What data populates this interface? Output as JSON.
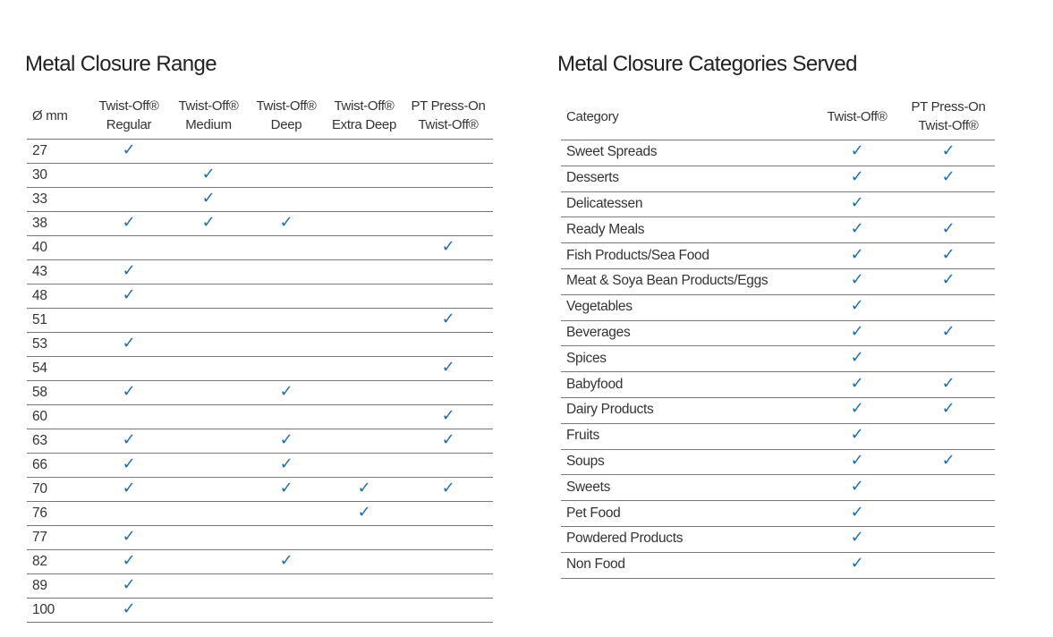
{
  "left": {
    "title": "Metal Closure Range",
    "headers": [
      [
        "Ø mm"
      ],
      [
        "Twist-Off®",
        "Regular"
      ],
      [
        "Twist-Off®",
        "Medium"
      ],
      [
        "Twist-Off®",
        "Deep"
      ],
      [
        "Twist-Off®",
        "Extra Deep"
      ],
      [
        "PT Press-On",
        "Twist-Off®"
      ]
    ],
    "rows": [
      [
        "27",
        "✓",
        null,
        null,
        null,
        null
      ],
      [
        "30",
        null,
        "✓",
        null,
        null,
        null
      ],
      [
        "33",
        null,
        "✓",
        null,
        null,
        null
      ],
      [
        "38",
        "✓",
        "✓",
        "✓",
        null,
        null
      ],
      [
        "40",
        null,
        null,
        null,
        null,
        "✓"
      ],
      [
        "43",
        "✓",
        null,
        null,
        null,
        null
      ],
      [
        "48",
        "✓",
        null,
        null,
        null,
        null
      ],
      [
        "51",
        null,
        null,
        null,
        null,
        "✓"
      ],
      [
        "53",
        "✓",
        null,
        null,
        null,
        null
      ],
      [
        "54",
        null,
        null,
        null,
        null,
        "✓"
      ],
      [
        "58",
        "✓",
        null,
        "✓",
        null,
        null
      ],
      [
        "60",
        null,
        null,
        null,
        null,
        "✓"
      ],
      [
        "63",
        "✓",
        null,
        "✓",
        null,
        "✓"
      ],
      [
        "66",
        "✓",
        null,
        "✓",
        null,
        null
      ],
      [
        "70",
        "✓",
        null,
        "✓",
        "✓",
        "✓"
      ],
      [
        "76",
        null,
        null,
        null,
        "✓",
        null
      ],
      [
        "77",
        "✓",
        null,
        null,
        null,
        null
      ],
      [
        "82",
        "✓",
        null,
        "✓",
        null,
        null
      ],
      [
        "89",
        "✓",
        null,
        null,
        null,
        null
      ],
      [
        "100",
        "✓",
        null,
        null,
        null,
        null
      ]
    ]
  },
  "right": {
    "title": "Metal Closure Categories Served",
    "headers": [
      [
        "Category"
      ],
      [
        "Twist-Off®"
      ],
      [
        "PT Press-On",
        "Twist-Off®"
      ]
    ],
    "rows": [
      [
        "Sweet Spreads",
        "✓",
        "✓"
      ],
      [
        "Desserts",
        "✓",
        "✓"
      ],
      [
        "Delicatessen",
        "✓",
        null
      ],
      [
        "Ready Meals",
        "✓",
        "✓"
      ],
      [
        "Fish Products/Sea Food",
        "✓",
        "✓"
      ],
      [
        "Meat & Soya Bean Products/Eggs",
        "✓",
        "✓"
      ],
      [
        "Vegetables",
        "✓",
        null
      ],
      [
        "Beverages",
        "✓",
        "✓"
      ],
      [
        "Spices",
        "✓",
        null
      ],
      [
        "Babyfood",
        "✓",
        "✓"
      ],
      [
        "Dairy Products",
        "✓",
        "✓"
      ],
      [
        "Fruits",
        "✓",
        null
      ],
      [
        "Soups",
        "✓",
        "✓"
      ],
      [
        "Sweets",
        "✓",
        null
      ],
      [
        "Pet Food",
        "✓",
        null
      ],
      [
        "Powdered Products",
        "✓",
        null
      ],
      [
        "Non Food",
        "✓",
        null
      ]
    ]
  }
}
